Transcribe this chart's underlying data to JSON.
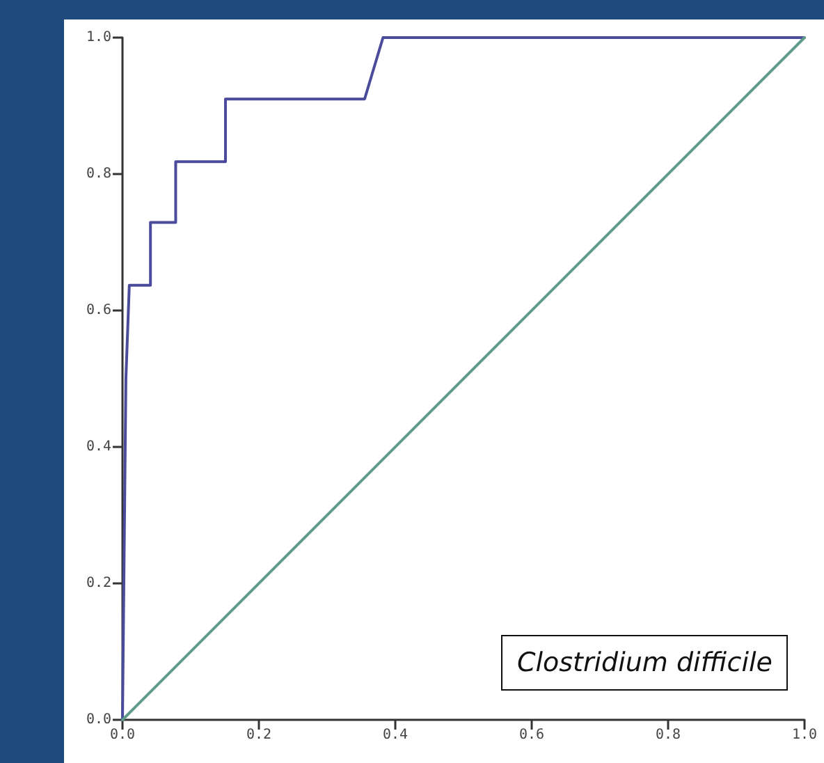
{
  "chart_data": {
    "type": "line",
    "series": [
      {
        "color": "#4b4b9b",
        "x": [
          0,
          0.005,
          0.01,
          0.041,
          0.041,
          0.078,
          0.078,
          0.151,
          0.151,
          0.355,
          0.382,
          1
        ],
        "values": [
          0,
          0.5,
          0.637,
          0.637,
          0.729,
          0.729,
          0.818,
          0.818,
          0.91,
          0.91,
          1,
          1
        ]
      },
      {
        "color": "#5f9c8c",
        "x": [
          0,
          1
        ],
        "values": [
          0,
          1
        ]
      }
    ],
    "xlim": [
      0,
      1
    ],
    "xticks": [
      {
        "value": 0,
        "label": "0.0"
      },
      0.2,
      0.4,
      0.6,
      0.8,
      {
        "value": 1,
        "label": "1.0"
      }
    ],
    "ylim": [
      0,
      1
    ],
    "yticks": [
      {
        "value": 0,
        "label": "0.0"
      },
      0.2,
      0.4,
      0.6,
      0.8,
      {
        "value": 1,
        "label": "1.0"
      }
    ],
    "grid": false,
    "marker": "none",
    "line_style": "solid",
    "annotations": [
      "Clostridium difficile"
    ]
  }
}
